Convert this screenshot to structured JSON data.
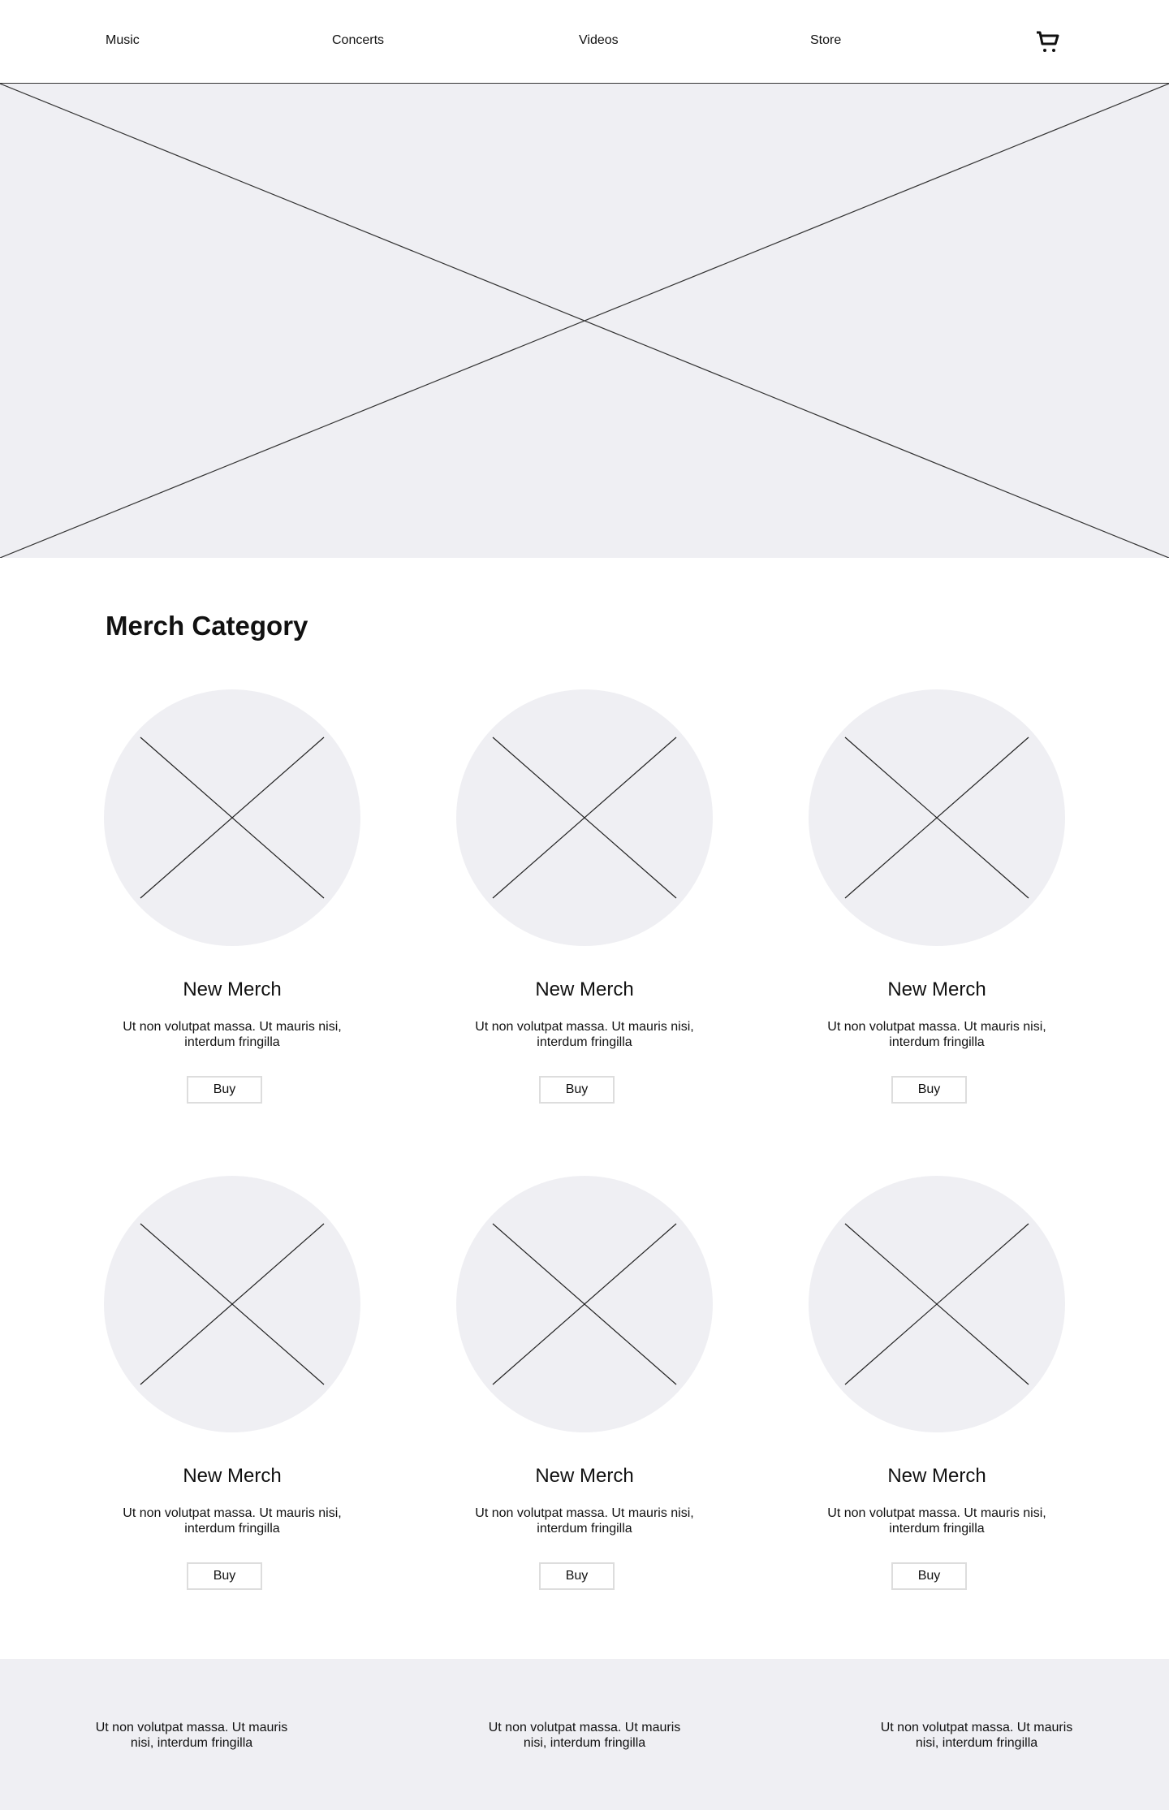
{
  "nav": {
    "items": [
      "Music",
      "Concerts",
      "Videos",
      "Store"
    ],
    "cart_icon": "shopping-cart-icon"
  },
  "hero": {
    "icon": "image-placeholder-icon"
  },
  "section": {
    "heading": "Merch Category"
  },
  "products": [
    {
      "title": "New Merch",
      "description": "Ut non volutpat massa. Ut mauris nisi, interdum fringilla",
      "button": "Buy"
    },
    {
      "title": "New Merch",
      "description": "Ut non volutpat massa. Ut mauris nisi, interdum fringilla",
      "button": "Buy"
    },
    {
      "title": "New Merch",
      "description": "Ut non volutpat massa. Ut mauris nisi, interdum fringilla",
      "button": "Buy"
    },
    {
      "title": "New Merch",
      "description": "Ut non volutpat massa. Ut mauris nisi, interdum fringilla",
      "button": "Buy"
    },
    {
      "title": "New Merch",
      "description": "Ut non volutpat massa. Ut mauris nisi, interdum fringilla",
      "button": "Buy"
    },
    {
      "title": "New Merch",
      "description": "Ut non volutpat massa. Ut mauris nisi, interdum fringilla",
      "button": "Buy"
    }
  ],
  "footer": {
    "columns": [
      "Ut non volutpat massa. Ut mauris nisi, interdum fringilla",
      "Ut non volutpat massa. Ut mauris nisi, interdum fringilla",
      "Ut non volutpat massa. Ut mauris nisi, interdum fringilla"
    ]
  },
  "colors": {
    "placeholder": "#efeff3",
    "line": "#333333"
  }
}
